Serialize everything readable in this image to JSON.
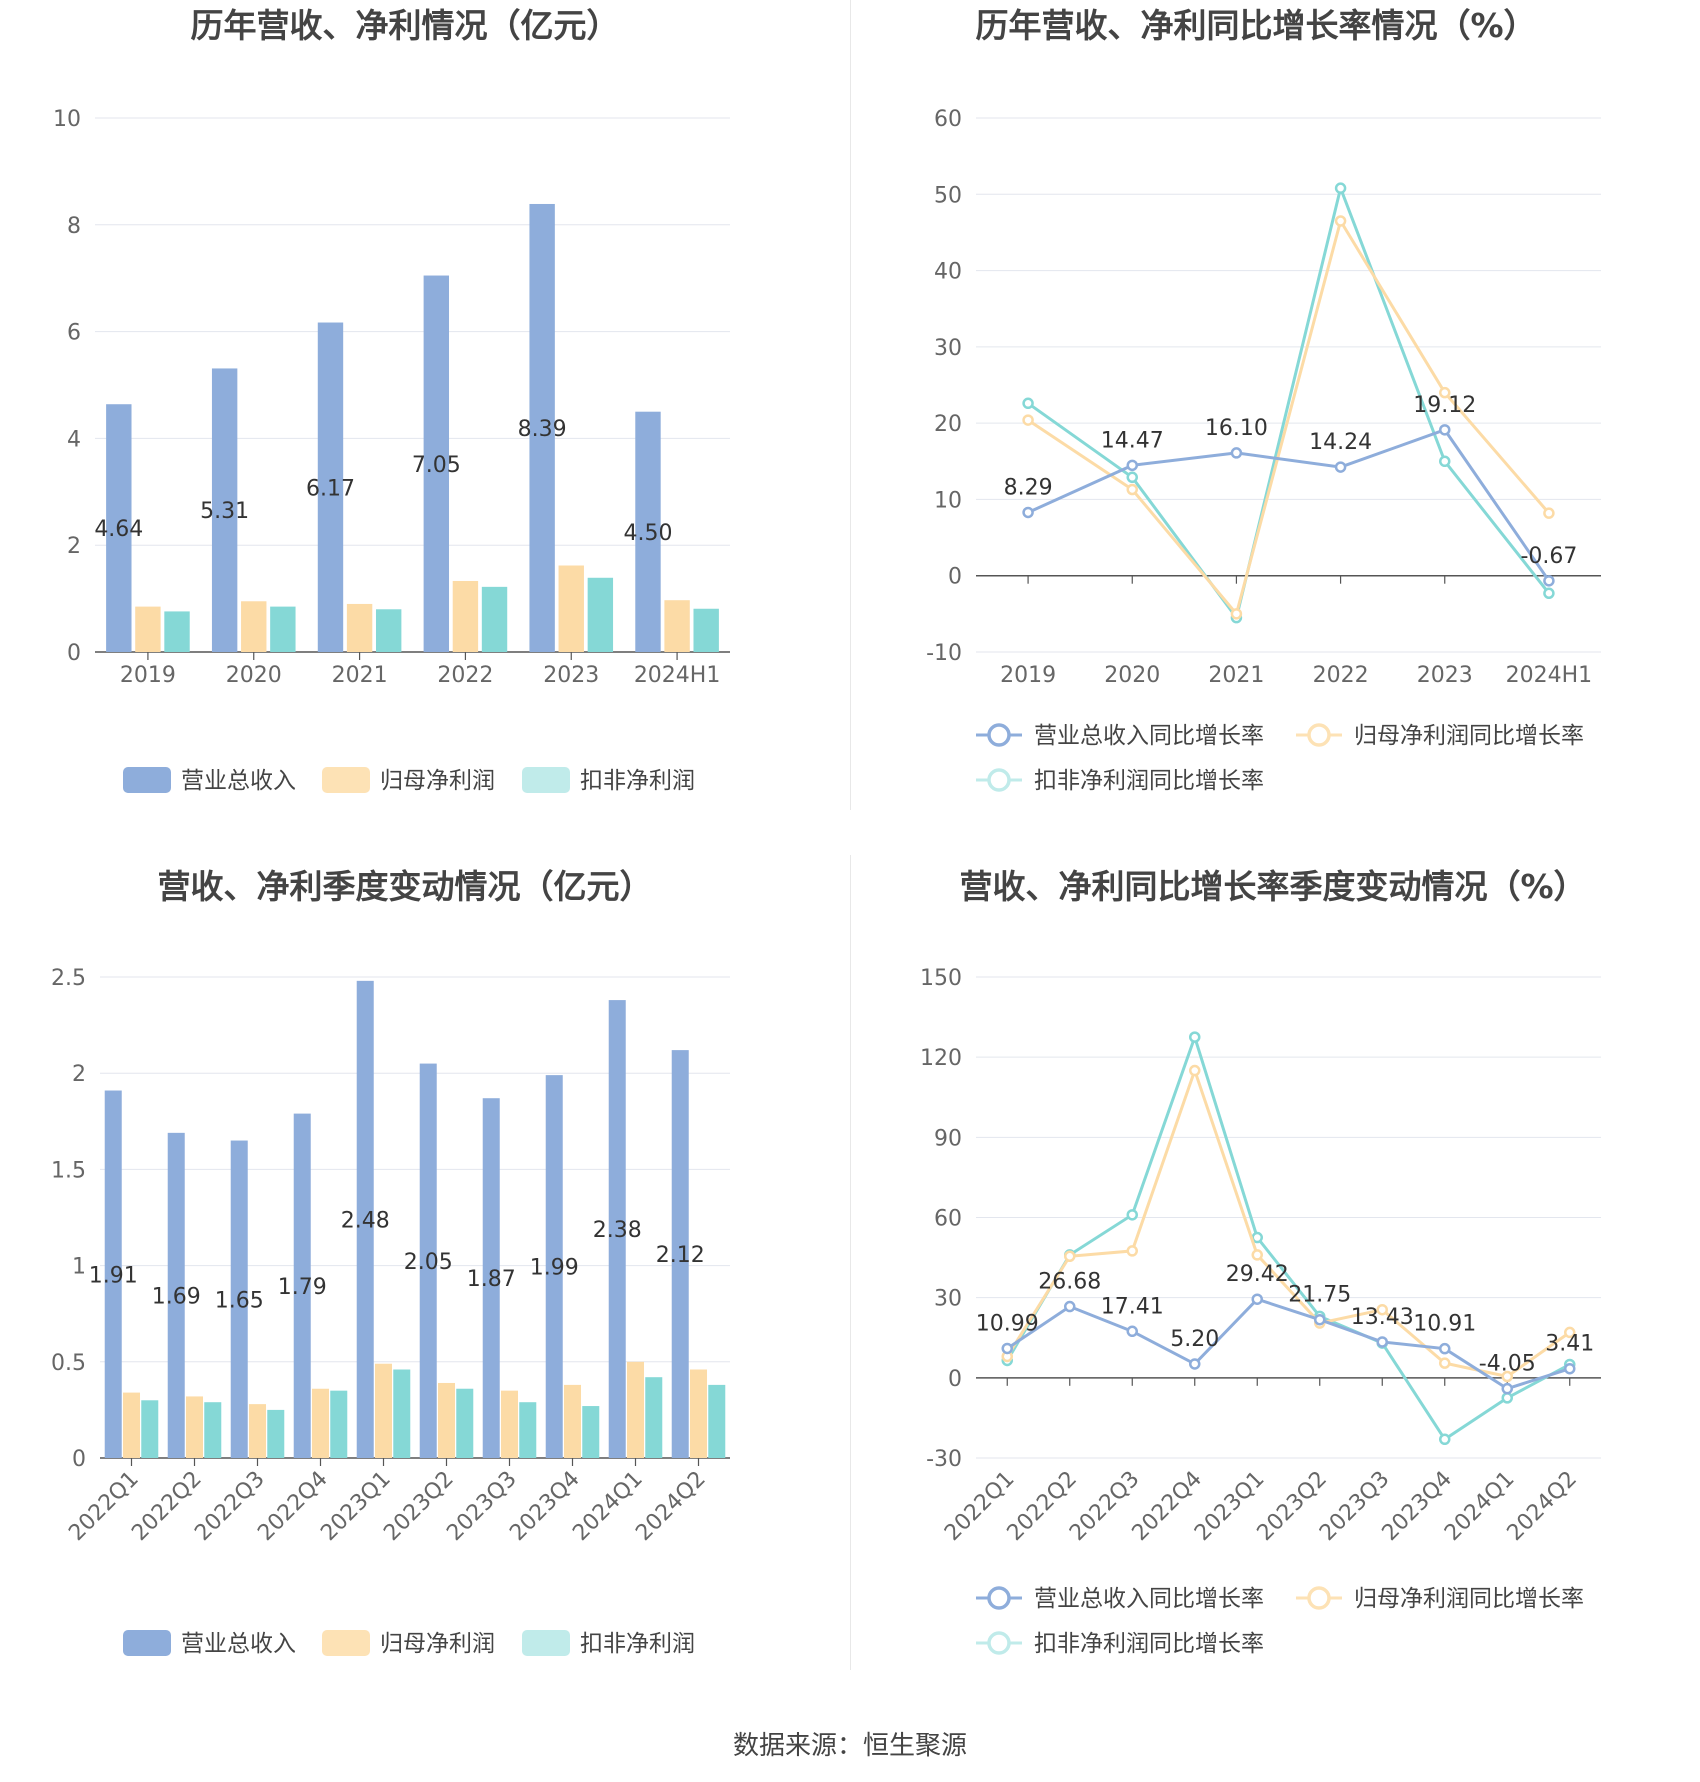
{
  "source": "数据来源：恒生聚源",
  "colors": {
    "revenue": "#8eaddb",
    "netprofit": "#fcdba6",
    "deducted": "#85d8d6",
    "grid": "#e3e6ee",
    "axis": "#555555"
  },
  "chart_data": [
    {
      "type": "bar",
      "title": "历年营收、净利情况（亿元）",
      "categories": [
        "2019",
        "2020",
        "2021",
        "2022",
        "2023",
        "2024H1"
      ],
      "ylim": [
        0,
        10
      ],
      "yticks": [
        "0",
        "2",
        "4",
        "6",
        "8",
        "10"
      ],
      "grid": true,
      "legend_position": "bottom",
      "series": [
        {
          "name": "营业总收入",
          "values": [
            4.64,
            5.31,
            6.17,
            7.05,
            8.39,
            4.5
          ],
          "labels": [
            "4.64",
            "5.31",
            "6.17",
            "7.05",
            "8.39",
            "4.50"
          ]
        },
        {
          "name": "归母净利润",
          "values": [
            0.85,
            0.95,
            0.9,
            1.33,
            1.62,
            0.97
          ]
        },
        {
          "name": "扣非净利润",
          "values": [
            0.76,
            0.85,
            0.8,
            1.22,
            1.39,
            0.81
          ]
        }
      ]
    },
    {
      "type": "line",
      "title": "历年营收、净利同比增长率情况（%）",
      "categories": [
        "2019",
        "2020",
        "2021",
        "2022",
        "2023",
        "2024H1"
      ],
      "ylim": [
        -10,
        60
      ],
      "yticks": [
        "-10",
        "0",
        "10",
        "20",
        "30",
        "40",
        "50",
        "60"
      ],
      "grid": true,
      "legend_position": "bottom",
      "series": [
        {
          "name": "营业总收入同比增长率",
          "values": [
            8.29,
            14.47,
            16.1,
            14.24,
            19.12,
            -0.67
          ],
          "labels": [
            "8.29",
            "14.47",
            "16.10",
            "14.24",
            "19.12",
            "-0.67"
          ]
        },
        {
          "name": "归母净利润同比增长率",
          "values": [
            20.4,
            11.3,
            -5.0,
            46.5,
            24.0,
            8.2
          ]
        },
        {
          "name": "扣非净利润同比增长率",
          "values": [
            22.6,
            12.9,
            -5.5,
            50.8,
            15.0,
            -2.3
          ]
        }
      ]
    },
    {
      "type": "bar",
      "title": "营收、净利季度变动情况（亿元）",
      "categories": [
        "2022Q1",
        "2022Q2",
        "2022Q3",
        "2022Q4",
        "2023Q1",
        "2023Q2",
        "2023Q3",
        "2023Q4",
        "2024Q1",
        "2024Q2"
      ],
      "ylim": [
        0,
        2.5
      ],
      "yticks": [
        "0",
        "0.5",
        "1",
        "1.5",
        "2",
        "2.5"
      ],
      "grid": true,
      "legend_position": "bottom",
      "series": [
        {
          "name": "营业总收入",
          "values": [
            1.91,
            1.69,
            1.65,
            1.79,
            2.48,
            2.05,
            1.87,
            1.99,
            2.38,
            2.12
          ],
          "labels": [
            "1.91",
            "1.69",
            "1.65",
            "1.79",
            "2.48",
            "2.05",
            "1.87",
            "1.99",
            "2.38",
            "2.12"
          ]
        },
        {
          "name": "归母净利润",
          "values": [
            0.34,
            0.32,
            0.28,
            0.36,
            0.49,
            0.39,
            0.35,
            0.38,
            0.5,
            0.46
          ]
        },
        {
          "name": "扣非净利润",
          "values": [
            0.3,
            0.29,
            0.25,
            0.35,
            0.46,
            0.36,
            0.29,
            0.27,
            0.42,
            0.38
          ]
        }
      ]
    },
    {
      "type": "line",
      "title": "营收、净利同比增长率季度变动情况（%）",
      "categories": [
        "2022Q1",
        "2022Q2",
        "2022Q3",
        "2022Q4",
        "2023Q1",
        "2023Q2",
        "2023Q3",
        "2023Q4",
        "2024Q1",
        "2024Q2"
      ],
      "ylim": [
        -30,
        150
      ],
      "yticks": [
        "-30",
        "0",
        "30",
        "60",
        "90",
        "120",
        "150"
      ],
      "grid": true,
      "legend_position": "bottom",
      "series": [
        {
          "name": "营业总收入同比增长率",
          "values": [
            10.99,
            26.68,
            17.41,
            5.2,
            29.42,
            21.75,
            13.43,
            10.91,
            -4.05,
            3.41
          ],
          "labels": [
            "10.99",
            "26.68",
            "17.41",
            "5.20",
            "29.42",
            "21.75",
            "13.43",
            "10.91",
            "-4.05",
            "3.41"
          ]
        },
        {
          "name": "归母净利润同比增长率",
          "values": [
            8.0,
            45.5,
            47.5,
            115.0,
            46.0,
            20.5,
            25.5,
            5.5,
            0.5,
            17.0
          ]
        },
        {
          "name": "扣非净利润同比增长率",
          "values": [
            6.5,
            46.0,
            61.0,
            127.5,
            52.5,
            23.0,
            13.0,
            -23.0,
            -7.5,
            5.0
          ]
        }
      ]
    }
  ]
}
